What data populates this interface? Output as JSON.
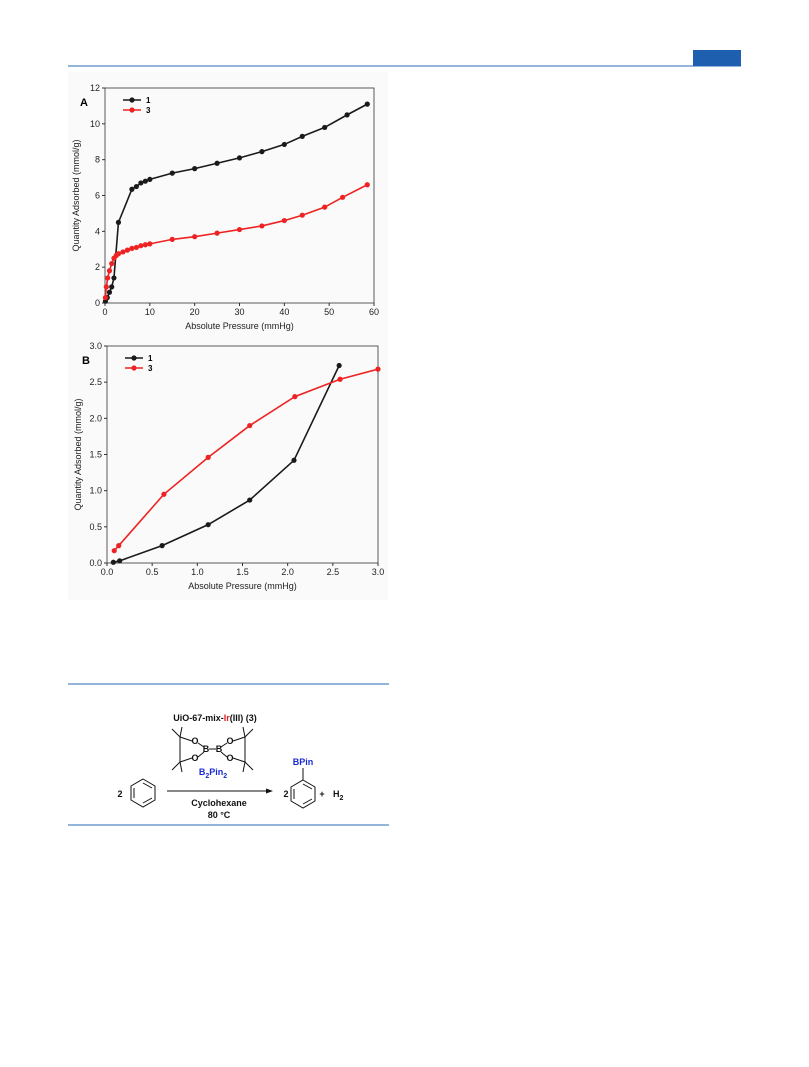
{
  "chart_data": [
    {
      "type": "line",
      "panel_label": "A",
      "xlabel": "Absolute Pressure (mmHg)",
      "ylabel": "Quantity Adsorbed (mmol/g)",
      "xlim": [
        0,
        60
      ],
      "ylim": [
        0,
        12
      ],
      "xticks": [
        0,
        10,
        20,
        30,
        40,
        50,
        60
      ],
      "yticks": [
        0,
        2,
        4,
        6,
        8,
        10,
        12
      ],
      "legend": "upper left",
      "series": [
        {
          "name": "1",
          "color": "#1a1a1a",
          "x": [
            0.1,
            0.5,
            1,
            1.5,
            2,
            3,
            6,
            7,
            8,
            9,
            10,
            15,
            20,
            25,
            30,
            35,
            40,
            44,
            49,
            54,
            58.5
          ],
          "values": [
            0.1,
            0.3,
            0.6,
            0.9,
            1.4,
            4.5,
            6.35,
            6.5,
            6.7,
            6.8,
            6.9,
            7.25,
            7.5,
            7.8,
            8.1,
            8.45,
            8.85,
            9.3,
            9.8,
            10.5,
            11.1
          ]
        },
        {
          "name": "3",
          "color": "#ee2222",
          "x": [
            0.1,
            0.3,
            0.6,
            1,
            1.5,
            2,
            2.5,
            3,
            4,
            5,
            6,
            7,
            8,
            9,
            10,
            15,
            20,
            25,
            30,
            35,
            40,
            44,
            49,
            53,
            58.5
          ],
          "values": [
            0.3,
            0.9,
            1.4,
            1.8,
            2.2,
            2.5,
            2.65,
            2.75,
            2.85,
            2.95,
            3.05,
            3.1,
            3.2,
            3.25,
            3.3,
            3.55,
            3.7,
            3.9,
            4.1,
            4.3,
            4.6,
            4.9,
            5.35,
            5.9,
            6.6
          ]
        }
      ]
    },
    {
      "type": "line",
      "panel_label": "B",
      "xlabel": "Absolute Pressure (mmHg)",
      "ylabel": "Quantity Adsorbed (mmol/g)",
      "xlim": [
        0,
        3
      ],
      "ylim": [
        0,
        3
      ],
      "xticks": [
        {
          "value": 0,
          "label": "0.0"
        },
        0.5,
        {
          "value": 1,
          "label": "1.0"
        },
        1.5,
        {
          "value": 2,
          "label": "2.0"
        },
        2.5,
        {
          "value": 3,
          "label": "3.0"
        }
      ],
      "yticks": [
        {
          "value": 0,
          "label": "0.0"
        },
        0.5,
        {
          "value": 1,
          "label": "1.0"
        },
        1.5,
        {
          "value": 2,
          "label": "2.0"
        },
        2.5,
        {
          "value": 3,
          "label": "3.0"
        }
      ],
      "legend": "upper left",
      "series": [
        {
          "name": "1",
          "color": "#1a1a1a",
          "x": [
            0.07,
            0.14,
            0.61,
            1.12,
            1.58,
            2.07,
            2.57
          ],
          "values": [
            0.01,
            0.03,
            0.24,
            0.53,
            0.87,
            1.42,
            2.73
          ]
        },
        {
          "name": "3",
          "color": "#ee2222",
          "x": [
            0.08,
            0.13,
            0.63,
            1.12,
            1.58,
            2.08,
            2.58,
            3.0
          ],
          "values": [
            0.17,
            0.24,
            0.95,
            1.46,
            1.9,
            2.3,
            2.54,
            2.68
          ]
        }
      ]
    }
  ],
  "scheme": {
    "catalyst": [
      "UiO-67-mix-",
      "Ir",
      "(III) (3)"
    ],
    "atoms": {
      "boron": "B",
      "oxygen": "O"
    },
    "reagent": [
      "B",
      "2",
      "Pin",
      "2"
    ],
    "reactant_coefficient": "2",
    "conditions": [
      "Cyclohexane",
      "80 °C"
    ],
    "product_coefficient": "2",
    "product_group": "BPin",
    "plus": "+",
    "byproduct": [
      "H",
      "2"
    ]
  }
}
